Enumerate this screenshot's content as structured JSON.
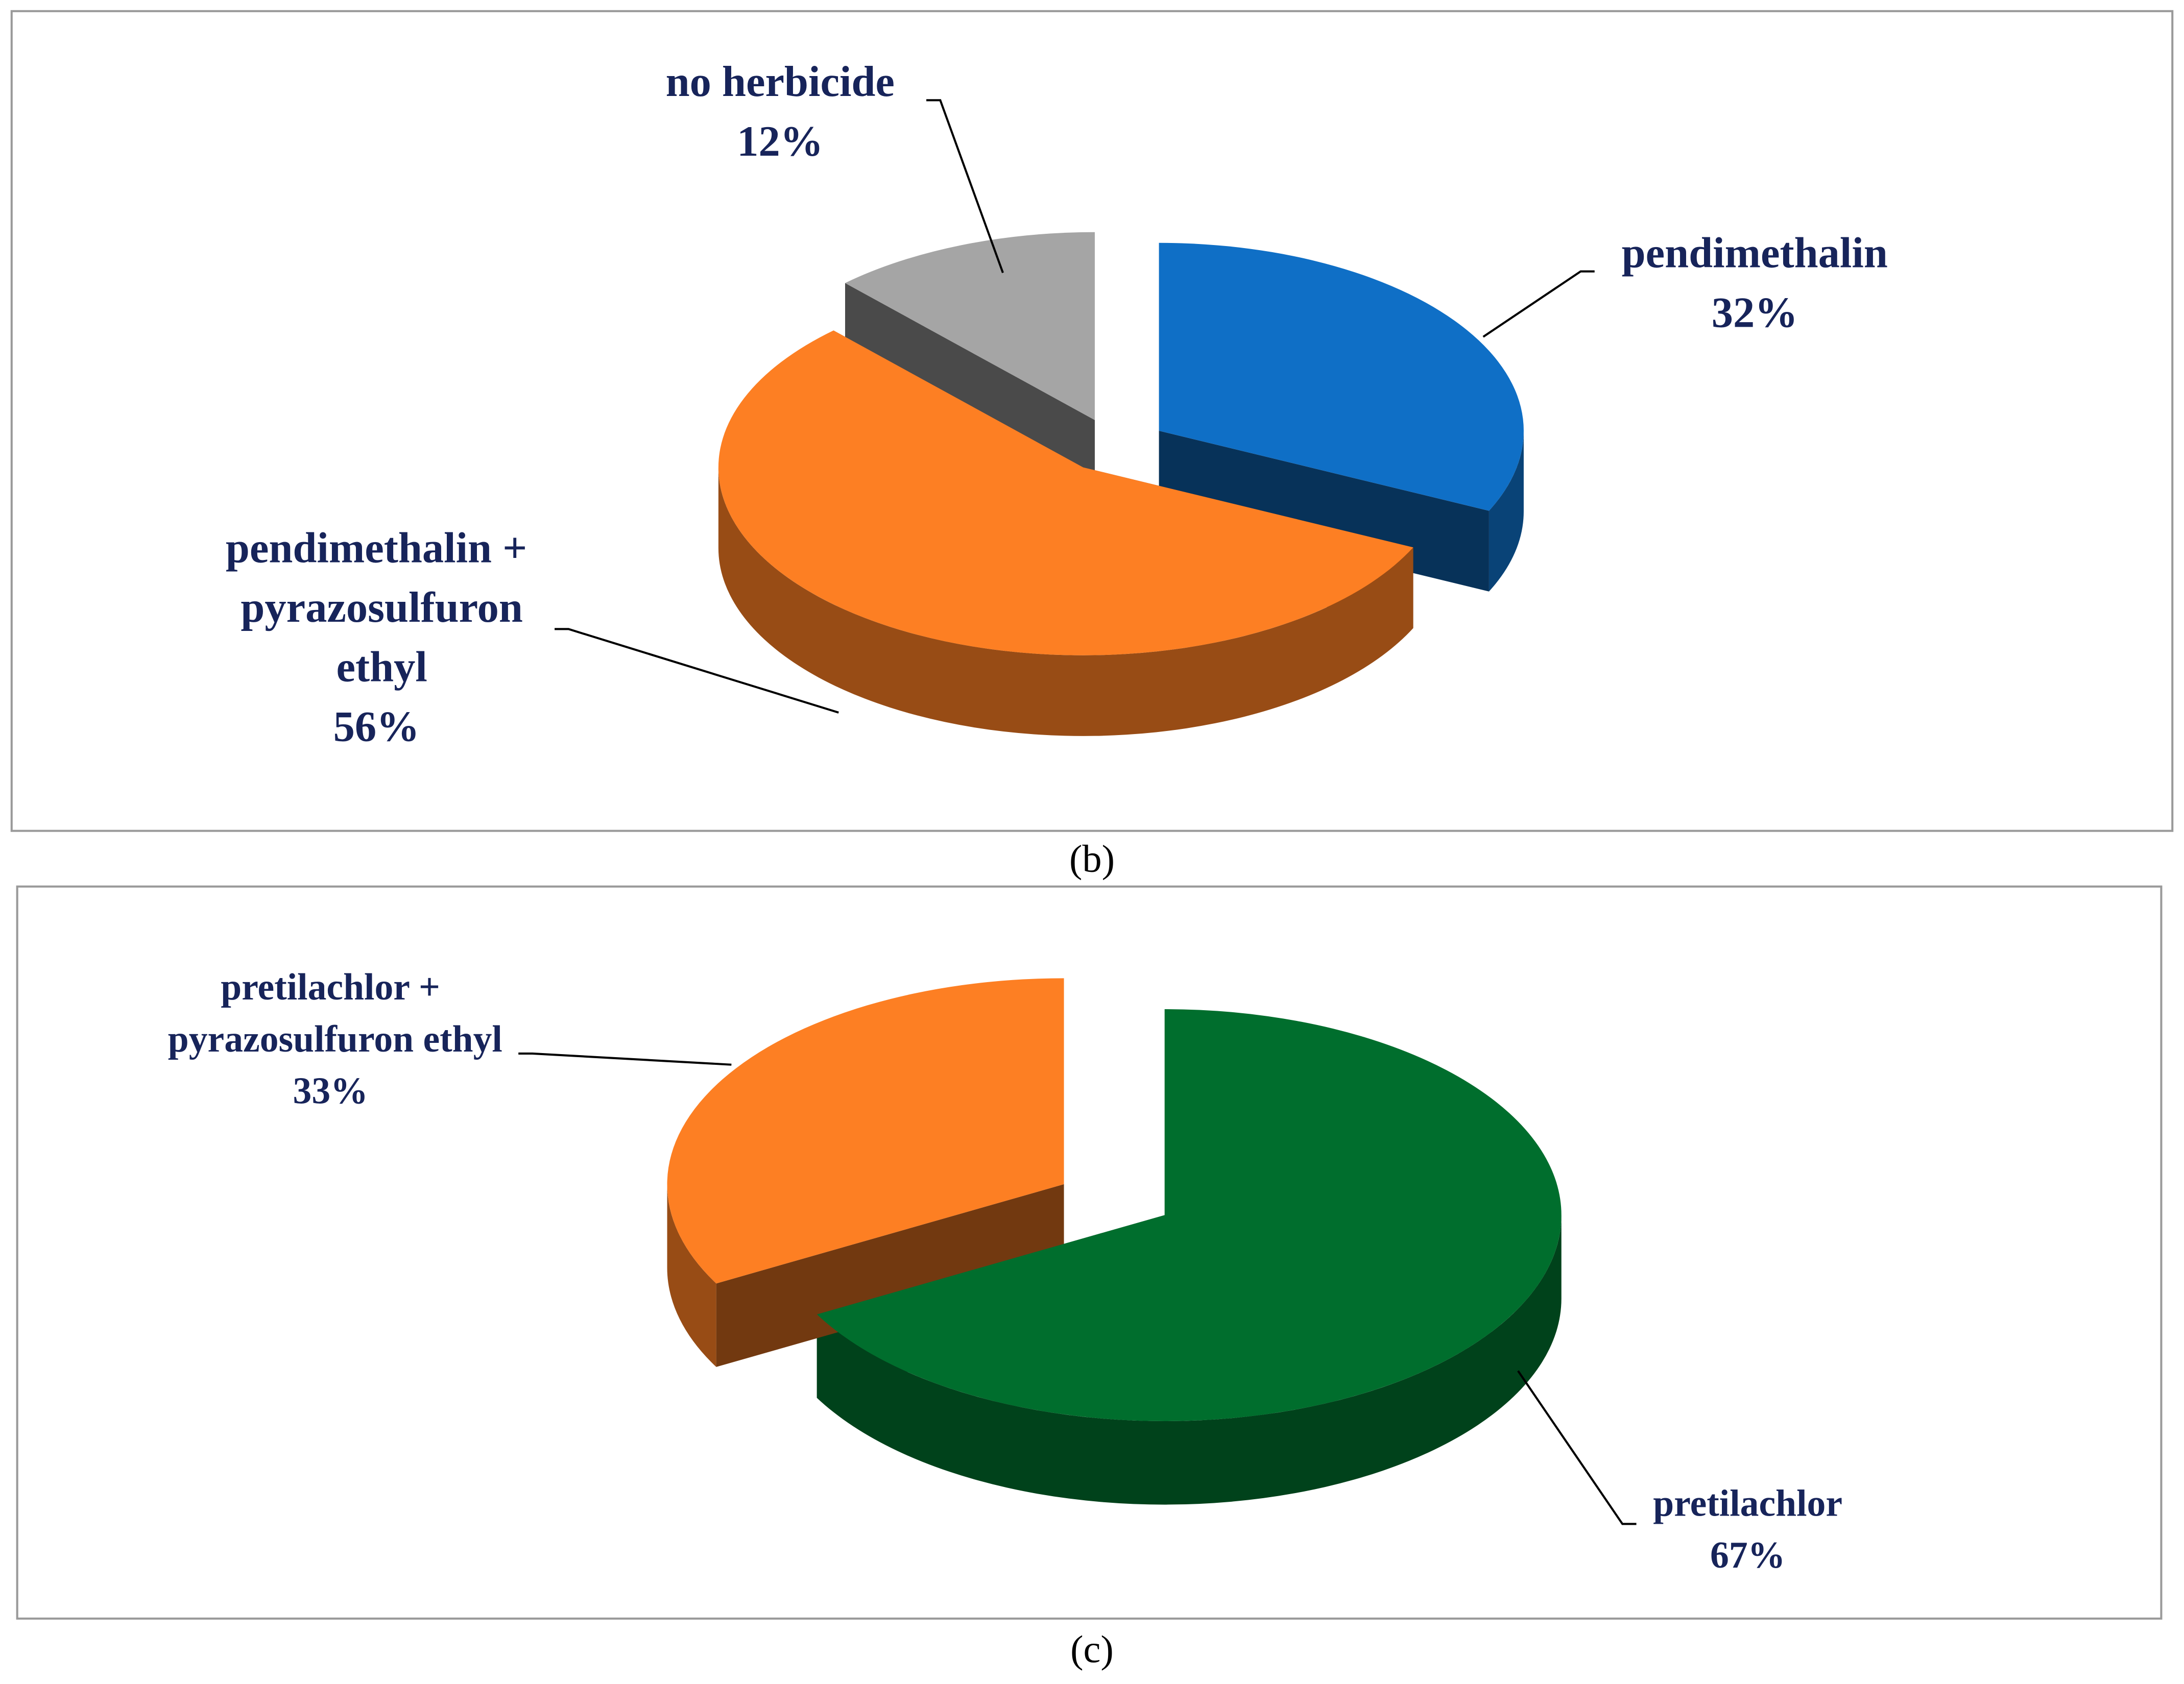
{
  "chart_data": [
    {
      "type": "pie",
      "caption": "(b)",
      "categories": [
        "pendimethalin",
        "pendimethalin + pyrazosulfuron ethyl",
        "no herbicide"
      ],
      "values": [
        32,
        56,
        12
      ],
      "value_labels": [
        "32%",
        "56%",
        "12%"
      ],
      "colors": [
        "#0f6fc6",
        "#fd7f23",
        "#a5a5a5"
      ]
    },
    {
      "type": "pie",
      "caption": "(c)",
      "categories": [
        "pretilachlor",
        "pretilachlor + pyrazosulfuron ethyl"
      ],
      "values": [
        67,
        33
      ],
      "value_labels": [
        "67%",
        "33%"
      ],
      "colors": [
        "#006e2d",
        "#fd7f23"
      ]
    }
  ]
}
